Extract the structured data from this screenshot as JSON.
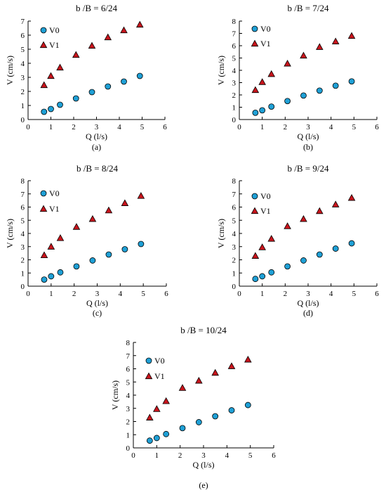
{
  "chart_data": [
    {
      "type": "scatter",
      "title": "b /B = 6/24",
      "caption": "(a)",
      "xlabel": "Q (l/s)",
      "ylabel": "V (cm/s)",
      "xlim": [
        0,
        6
      ],
      "ylim": [
        0,
        7
      ],
      "xticks": [
        0,
        1,
        2,
        3,
        4,
        5,
        6
      ],
      "yticks": [
        0,
        1,
        2,
        3,
        4,
        5,
        6,
        7
      ],
      "legend_position": "top-left",
      "series": [
        {
          "name": "V0",
          "marker": "circle",
          "color": "#1fa0d6",
          "x": [
            0.7,
            1.0,
            1.4,
            2.1,
            2.8,
            3.5,
            4.2,
            4.9
          ],
          "y": [
            0.55,
            0.75,
            1.05,
            1.5,
            1.95,
            2.35,
            2.7,
            3.1
          ]
        },
        {
          "name": "V1",
          "marker": "triangle",
          "color": "#c8141c",
          "x": [
            0.7,
            1.0,
            1.4,
            2.1,
            2.8,
            3.5,
            4.2,
            4.9
          ],
          "y": [
            2.45,
            3.1,
            3.7,
            4.6,
            5.25,
            5.85,
            6.35,
            6.75
          ]
        }
      ]
    },
    {
      "type": "scatter",
      "title": "b /B = 7/24",
      "caption": "(b)",
      "xlabel": "Q (l/s)",
      "ylabel": "V (cm/s)",
      "xlim": [
        0,
        6
      ],
      "ylim": [
        0,
        8
      ],
      "xticks": [
        0,
        1,
        2,
        3,
        4,
        5,
        6
      ],
      "yticks": [
        0,
        1,
        2,
        3,
        4,
        5,
        6,
        7,
        8
      ],
      "legend_position": "top-left",
      "series": [
        {
          "name": "V0",
          "marker": "circle",
          "color": "#1fa0d6",
          "x": [
            0.7,
            1.0,
            1.4,
            2.1,
            2.8,
            3.5,
            4.2,
            4.9
          ],
          "y": [
            0.55,
            0.75,
            1.05,
            1.5,
            1.95,
            2.35,
            2.75,
            3.1
          ]
        },
        {
          "name": "V1",
          "marker": "triangle",
          "color": "#c8141c",
          "x": [
            0.7,
            1.0,
            1.4,
            2.1,
            2.8,
            3.5,
            4.2,
            4.9
          ],
          "y": [
            2.4,
            3.05,
            3.7,
            4.55,
            5.2,
            5.9,
            6.35,
            6.8
          ]
        }
      ]
    },
    {
      "type": "scatter",
      "title": "b /B = 8/24",
      "caption": "(c)",
      "xlabel": "Q (l/s)",
      "ylabel": "V (cm/s)",
      "xlim": [
        0,
        6
      ],
      "ylim": [
        0,
        8
      ],
      "xticks": [
        0,
        1,
        2,
        3,
        4,
        5,
        6
      ],
      "yticks": [
        0,
        1,
        2,
        3,
        4,
        5,
        6,
        7,
        8
      ],
      "legend_position": "top-left",
      "series": [
        {
          "name": "V0",
          "marker": "circle",
          "color": "#1fa0d6",
          "x": [
            0.7,
            1.0,
            1.4,
            2.1,
            2.8,
            3.5,
            4.2,
            4.9
          ],
          "y": [
            0.5,
            0.75,
            1.05,
            1.5,
            1.95,
            2.4,
            2.8,
            3.2
          ]
        },
        {
          "name": "V1",
          "marker": "triangle",
          "color": "#c8141c",
          "x": [
            0.7,
            1.0,
            1.4,
            2.1,
            2.8,
            3.5,
            4.2,
            4.9
          ],
          "y": [
            2.35,
            3.0,
            3.65,
            4.5,
            5.1,
            5.75,
            6.3,
            6.85
          ]
        }
      ]
    },
    {
      "type": "scatter",
      "title": "b /B = 9/24",
      "caption": "(d)",
      "xlabel": "Q (l/s)",
      "ylabel": "V (cm/s)",
      "xlim": [
        0,
        6
      ],
      "ylim": [
        0,
        8
      ],
      "xticks": [
        0,
        1,
        2,
        3,
        4,
        5,
        6
      ],
      "yticks": [
        0,
        1,
        2,
        3,
        4,
        5,
        6,
        7,
        8
      ],
      "legend_position": "top-left",
      "series": [
        {
          "name": "V0",
          "marker": "circle",
          "color": "#1fa0d6",
          "x": [
            0.7,
            1.0,
            1.4,
            2.1,
            2.8,
            3.5,
            4.2,
            4.9
          ],
          "y": [
            0.55,
            0.75,
            1.05,
            1.5,
            1.95,
            2.4,
            2.85,
            3.25
          ]
        },
        {
          "name": "V1",
          "marker": "triangle",
          "color": "#c8141c",
          "x": [
            0.7,
            1.0,
            1.4,
            2.1,
            2.8,
            3.5,
            4.2,
            4.9
          ],
          "y": [
            2.3,
            2.95,
            3.6,
            4.55,
            5.1,
            5.7,
            6.2,
            6.7
          ]
        }
      ]
    },
    {
      "type": "scatter",
      "title": "b /B = 10/24",
      "caption": "(e)",
      "xlabel": "Q (l/s)",
      "ylabel": "V (cm/s)",
      "xlim": [
        0,
        6
      ],
      "ylim": [
        0,
        8
      ],
      "xticks": [
        0,
        1,
        2,
        3,
        4,
        5,
        6
      ],
      "yticks": [
        0,
        1,
        2,
        3,
        4,
        5,
        6,
        7,
        8
      ],
      "legend_position": "top-left",
      "series": [
        {
          "name": "V0",
          "marker": "circle",
          "color": "#1fa0d6",
          "x": [
            0.7,
            1.0,
            1.4,
            2.1,
            2.8,
            3.5,
            4.2,
            4.9
          ],
          "y": [
            0.55,
            0.75,
            1.05,
            1.5,
            1.95,
            2.4,
            2.85,
            3.25
          ]
        },
        {
          "name": "V1",
          "marker": "triangle",
          "color": "#c8141c",
          "x": [
            0.7,
            1.0,
            1.4,
            2.1,
            2.8,
            3.5,
            4.2,
            4.9
          ],
          "y": [
            2.3,
            2.95,
            3.55,
            4.55,
            5.1,
            5.7,
            6.2,
            6.7
          ]
        }
      ]
    }
  ]
}
